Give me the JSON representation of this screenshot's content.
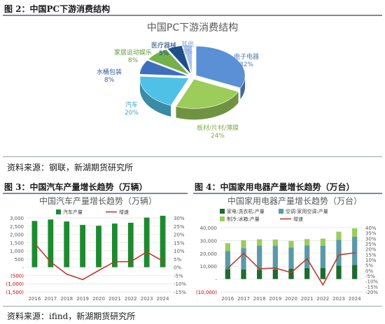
{
  "figures": {
    "fig2_label": "图 2：中国PC下游消费结构",
    "fig3_label": "图 3：中国汽车产量增长趋势（万辆）",
    "fig4_label": "图 4：中国家用电器产量增长趋势（万台）",
    "source1": "资料来源：钢联，新湖期货研究所",
    "source2": "资料来源：ifind，新湖期货研究所"
  },
  "chart_data": [
    {
      "type": "pie",
      "title": "中国PC下游消费结构",
      "style": "3d-exploded",
      "slices": [
        {
          "name": "电子电器",
          "value": 32,
          "label": "32%",
          "color": "#5b8fd6"
        },
        {
          "name": "板材/片材/薄膜",
          "value": 24,
          "label": "24%",
          "color": "#9ccc5a"
        },
        {
          "name": "汽车",
          "value": 20,
          "label": "20%",
          "color": "#4fc1e6"
        },
        {
          "name": "水桶包装",
          "value": 8,
          "label": "8%",
          "color": "#3d6fbf"
        },
        {
          "name": "家居运动娱乐",
          "value": 8,
          "label": "8%",
          "color": "#74b04b"
        },
        {
          "name": "医疗器械",
          "value": 5,
          "label": "5%",
          "color": "#1e4f8a"
        },
        {
          "name": "其他",
          "value": 3,
          "label": "3%",
          "color": "#a9c4ee"
        }
      ]
    },
    {
      "type": "bar",
      "title": "中国汽车产量增长趋势（万辆）",
      "categories": [
        "2016",
        "2017",
        "2018",
        "2019",
        "2020",
        "2021",
        "2022",
        "2023",
        "2024"
      ],
      "series": [
        {
          "name": "汽车产量",
          "type": "bar",
          "axis": "left",
          "color": "#1e8a2e",
          "values": [
            2812,
            2902,
            2781,
            2572,
            2523,
            2653,
            2702,
            3016,
            3128
          ]
        },
        {
          "name": "增速",
          "type": "line",
          "axis": "right",
          "color": "#c0392b",
          "values": [
            14.5,
            3.2,
            -4.2,
            -7.5,
            -2.0,
            3.4,
            3.4,
            9.3,
            3.7
          ]
        }
      ],
      "y_left": {
        "min": -1500,
        "max": 3000,
        "ticks": [
          -1500,
          -1000,
          -500,
          0,
          500,
          1000,
          1500,
          2000,
          2500,
          3000
        ],
        "tick_labels": [
          "(1,500)",
          "(1,000)",
          "(500)",
          "-",
          "500",
          "1,000",
          "1,500",
          "2,000",
          "2,500",
          "3,000"
        ]
      },
      "y_right": {
        "min": -15,
        "max": 30,
        "ticks": [
          -15,
          -10,
          -5,
          0,
          5,
          10,
          15,
          20,
          25,
          30
        ],
        "tick_labels": [
          "-15%",
          "-10%",
          "-5%",
          "0%",
          "5%",
          "10%",
          "15%",
          "20%",
          "25%",
          "30%"
        ]
      },
      "legend": "top"
    },
    {
      "type": "bar",
      "title": "中国家用电器产量增长趋势（万台）",
      "stacked": true,
      "categories": [
        "2016",
        "2017",
        "2018",
        "2019",
        "2020",
        "2021",
        "2022",
        "2023",
        "2024"
      ],
      "series": [
        {
          "name": "家电:洗衣机:产量",
          "type": "bar",
          "axis": "left",
          "color": "#1e6b2e",
          "values": [
            7621,
            7501,
            7230,
            7434,
            8042,
            8618,
            8480,
            10458,
            11000
          ]
        },
        {
          "name": "空调:家用空调:产量",
          "type": "bar",
          "axis": "left",
          "color": "#5a9aa8",
          "values": [
            14300,
            16600,
            18800,
            18400,
            16500,
            17500,
            17500,
            20000,
            22000
          ]
        },
        {
          "name": "制冷:冰箱:产量",
          "type": "bar",
          "axis": "left",
          "color": "#9ccc5a",
          "values": [
            6000,
            6100,
            4900,
            4900,
            5100,
            5000,
            5500,
            6400,
            6500
          ]
        },
        {
          "name": "增速",
          "type": "line",
          "axis": "right",
          "color": "#c0392b",
          "values": [
            2.0,
            16.0,
            1.5,
            2.3,
            -2.0,
            11.0,
            -13.5,
            14.5,
            16.5
          ]
        }
      ],
      "y_left": {
        "min": -10000,
        "max": 40000,
        "ticks": [
          -10000,
          0,
          10000,
          20000,
          30000,
          40000
        ],
        "tick_labels": [
          "(10,000)",
          "-",
          "10,000",
          "20,000",
          "30,000",
          "40,000"
        ]
      },
      "y_right": {
        "min": -20,
        "max": 40,
        "ticks": [
          -20,
          -15,
          -10,
          -5,
          0,
          5,
          10,
          15,
          20,
          25,
          30,
          35,
          40
        ],
        "tick_labels": [
          "-20%",
          "-15%",
          "-10%",
          "-5%",
          "0%",
          "5%",
          "10%",
          "15%",
          "20%",
          "25%",
          "30%",
          "35%",
          "40%"
        ]
      },
      "legend": "top"
    }
  ]
}
